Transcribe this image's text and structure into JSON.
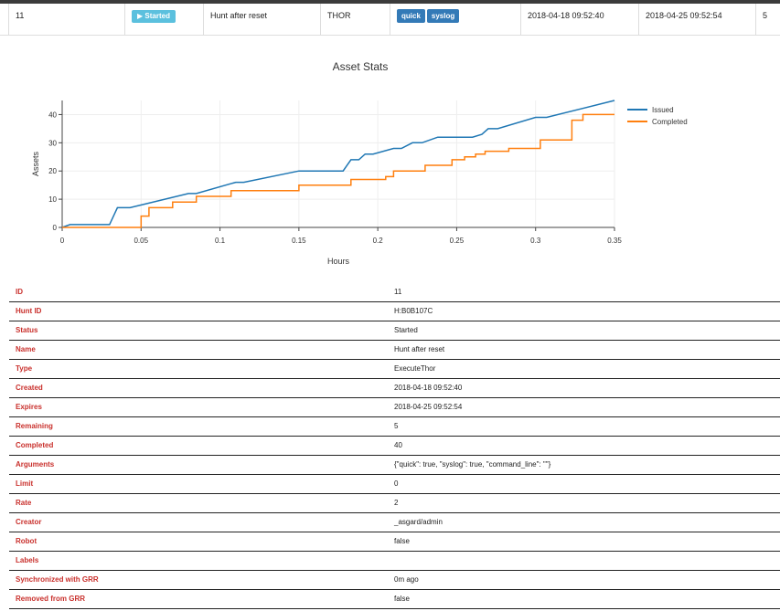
{
  "hunt_row": {
    "id": "11",
    "status": "Started",
    "name": "Hunt after reset",
    "type": "THOR",
    "labels": [
      "quick",
      "syslog"
    ],
    "created": "2018-04-18 09:52:40",
    "expires": "2018-04-25 09:52:54",
    "remaining": "5"
  },
  "chart_data": {
    "type": "line",
    "title": "Asset Stats",
    "xlabel": "Hours",
    "ylabel": "Assets",
    "xlim": [
      0,
      0.35
    ],
    "ylim": [
      0,
      45
    ],
    "x_ticks": [
      "0",
      "0.05",
      "0.1",
      "0.15",
      "0.2",
      "0.25",
      "0.3",
      "0.35"
    ],
    "y_ticks": [
      "0",
      "10",
      "20",
      "30",
      "40"
    ],
    "grid": true,
    "legend_position": "top-right",
    "series": [
      {
        "name": "Issued",
        "color": "#1f77b4",
        "points": [
          [
            0,
            0
          ],
          [
            0.005,
            1
          ],
          [
            0.03,
            1
          ],
          [
            0.035,
            7
          ],
          [
            0.043,
            7
          ],
          [
            0.08,
            12
          ],
          [
            0.085,
            12
          ],
          [
            0.11,
            16
          ],
          [
            0.115,
            16
          ],
          [
            0.15,
            20
          ],
          [
            0.178,
            20
          ],
          [
            0.183,
            24
          ],
          [
            0.188,
            24
          ],
          [
            0.192,
            26
          ],
          [
            0.197,
            26
          ],
          [
            0.21,
            28
          ],
          [
            0.215,
            28
          ],
          [
            0.222,
            30
          ],
          [
            0.228,
            30
          ],
          [
            0.238,
            32
          ],
          [
            0.26,
            32
          ],
          [
            0.266,
            33
          ],
          [
            0.27,
            35
          ],
          [
            0.276,
            35
          ],
          [
            0.3,
            39
          ],
          [
            0.307,
            39
          ],
          [
            0.35,
            45
          ]
        ]
      },
      {
        "name": "Completed",
        "color": "#ff7f0e",
        "points": [
          [
            0,
            0
          ],
          [
            0.05,
            0
          ],
          [
            0.05,
            4
          ],
          [
            0.055,
            4
          ],
          [
            0.055,
            7
          ],
          [
            0.07,
            7
          ],
          [
            0.07,
            9
          ],
          [
            0.085,
            9
          ],
          [
            0.085,
            11
          ],
          [
            0.107,
            11
          ],
          [
            0.107,
            13
          ],
          [
            0.15,
            13
          ],
          [
            0.15,
            15
          ],
          [
            0.183,
            15
          ],
          [
            0.183,
            17
          ],
          [
            0.205,
            17
          ],
          [
            0.205,
            18
          ],
          [
            0.21,
            18
          ],
          [
            0.21,
            20
          ],
          [
            0.23,
            20
          ],
          [
            0.23,
            22
          ],
          [
            0.247,
            22
          ],
          [
            0.247,
            24
          ],
          [
            0.255,
            24
          ],
          [
            0.255,
            25
          ],
          [
            0.262,
            25
          ],
          [
            0.262,
            26
          ],
          [
            0.268,
            26
          ],
          [
            0.268,
            27
          ],
          [
            0.283,
            27
          ],
          [
            0.283,
            28
          ],
          [
            0.303,
            28
          ],
          [
            0.303,
            31
          ],
          [
            0.323,
            31
          ],
          [
            0.323,
            38
          ],
          [
            0.33,
            38
          ],
          [
            0.33,
            40
          ],
          [
            0.35,
            40
          ]
        ]
      }
    ]
  },
  "details": [
    {
      "label": "ID",
      "value": "11"
    },
    {
      "label": "Hunt ID",
      "value": "H:B0B107C"
    },
    {
      "label": "Status",
      "value": "Started"
    },
    {
      "label": "Name",
      "value": "Hunt after reset"
    },
    {
      "label": "Type",
      "value": "ExecuteThor"
    },
    {
      "label": "Created",
      "value": "2018-04-18 09:52:40"
    },
    {
      "label": "Expires",
      "value": "2018-04-25 09:52:54"
    },
    {
      "label": "Remaining",
      "value": "5"
    },
    {
      "label": "Completed",
      "value": "40"
    },
    {
      "label": "Arguments",
      "value": "{\"quick\": true, \"syslog\": true, \"command_line\": \"\"}"
    },
    {
      "label": "Limit",
      "value": "0"
    },
    {
      "label": "Rate",
      "value": "2"
    },
    {
      "label": "Creator",
      "value": "_asgard/admin"
    },
    {
      "label": "Robot",
      "value": "false"
    },
    {
      "label": "Labels",
      "value": ""
    },
    {
      "label": "Synchronized with GRR",
      "value": "0m ago"
    },
    {
      "label": "Removed from GRR",
      "value": "false"
    }
  ]
}
